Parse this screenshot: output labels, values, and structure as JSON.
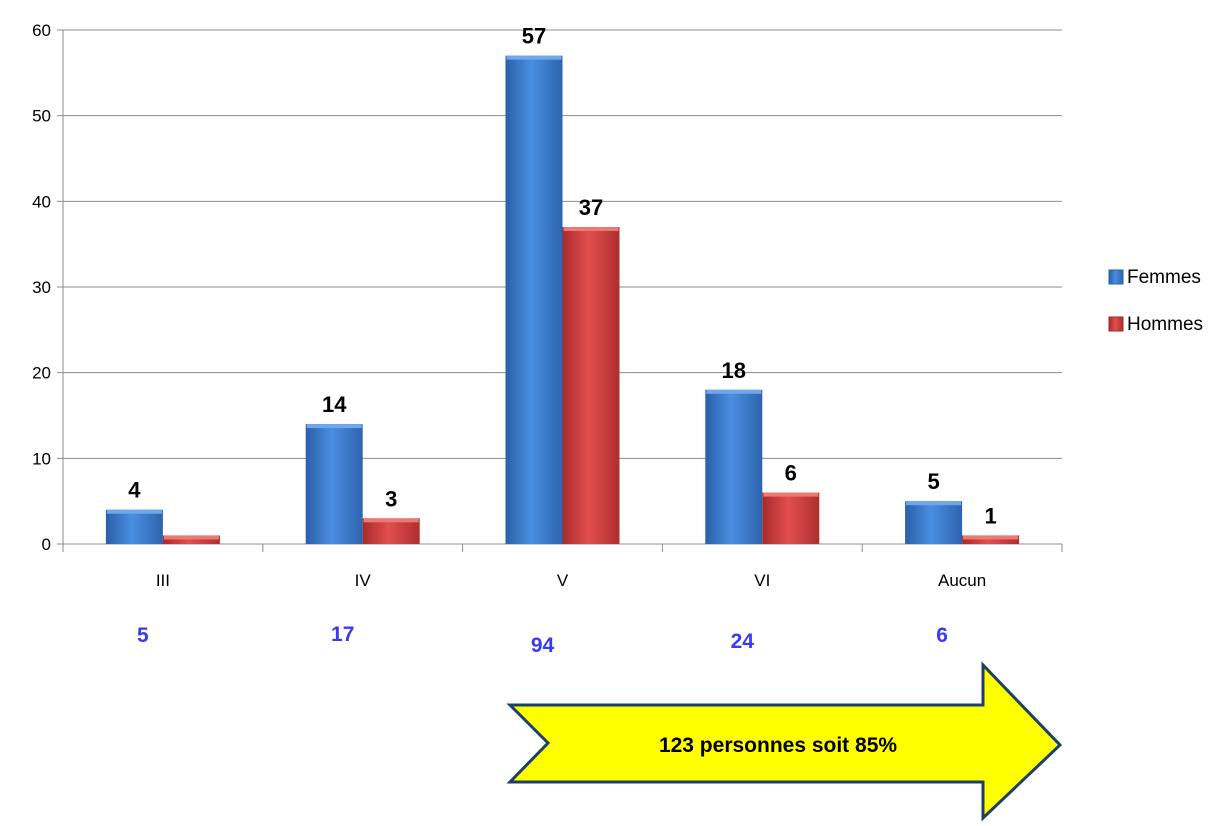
{
  "chart_data": {
    "type": "bar",
    "categories": [
      "III",
      "IV",
      "V",
      "VI",
      "Aucun"
    ],
    "series": [
      {
        "name": "Femmes",
        "values": [
          4,
          14,
          57,
          18,
          5
        ],
        "color": "#3A78C8"
      },
      {
        "name": "Hommes",
        "values": [
          1,
          3,
          37,
          6,
          1
        ],
        "color": "#C83A3A"
      }
    ],
    "data_labels": [
      "4",
      "",
      "14",
      "3",
      "57",
      "37",
      "18",
      "6",
      "5",
      "1"
    ],
    "category_totals": [
      "5",
      "17",
      "94",
      "24",
      "6"
    ],
    "y_ticks": [
      "0",
      "10",
      "20",
      "30",
      "40",
      "50",
      "60"
    ],
    "ylim": [
      0,
      60
    ],
    "grid": true,
    "legend_position": "right",
    "callout": {
      "text": "123 personnes soit 85%",
      "shape": "arrow-right",
      "fill": "#FFFF00"
    },
    "total_color": "#3A3AF0"
  }
}
